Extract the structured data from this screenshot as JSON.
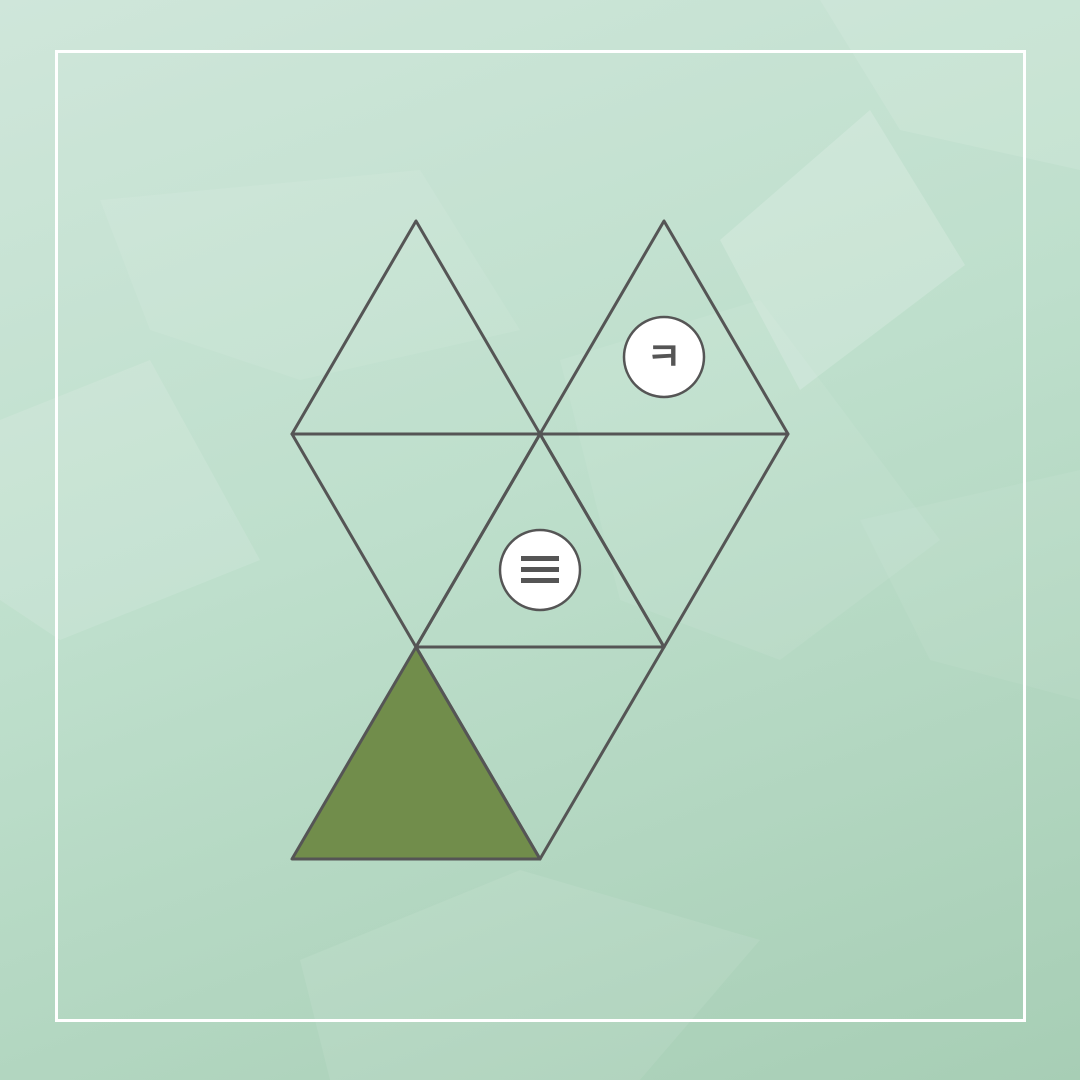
{
  "puzzle": {
    "colors": {
      "outline": "#555555",
      "filled_piece": "#718d4b",
      "frame": "#ffffff",
      "badge": "#ffffff"
    },
    "filled_cells": 1,
    "badges": [
      {
        "cell": "top-right",
        "glyph": "ㅋ",
        "icon": "hangul-kieuk-icon"
      },
      {
        "cell": "center",
        "glyph": "≡",
        "icon": "triple-bar-icon"
      }
    ]
  }
}
